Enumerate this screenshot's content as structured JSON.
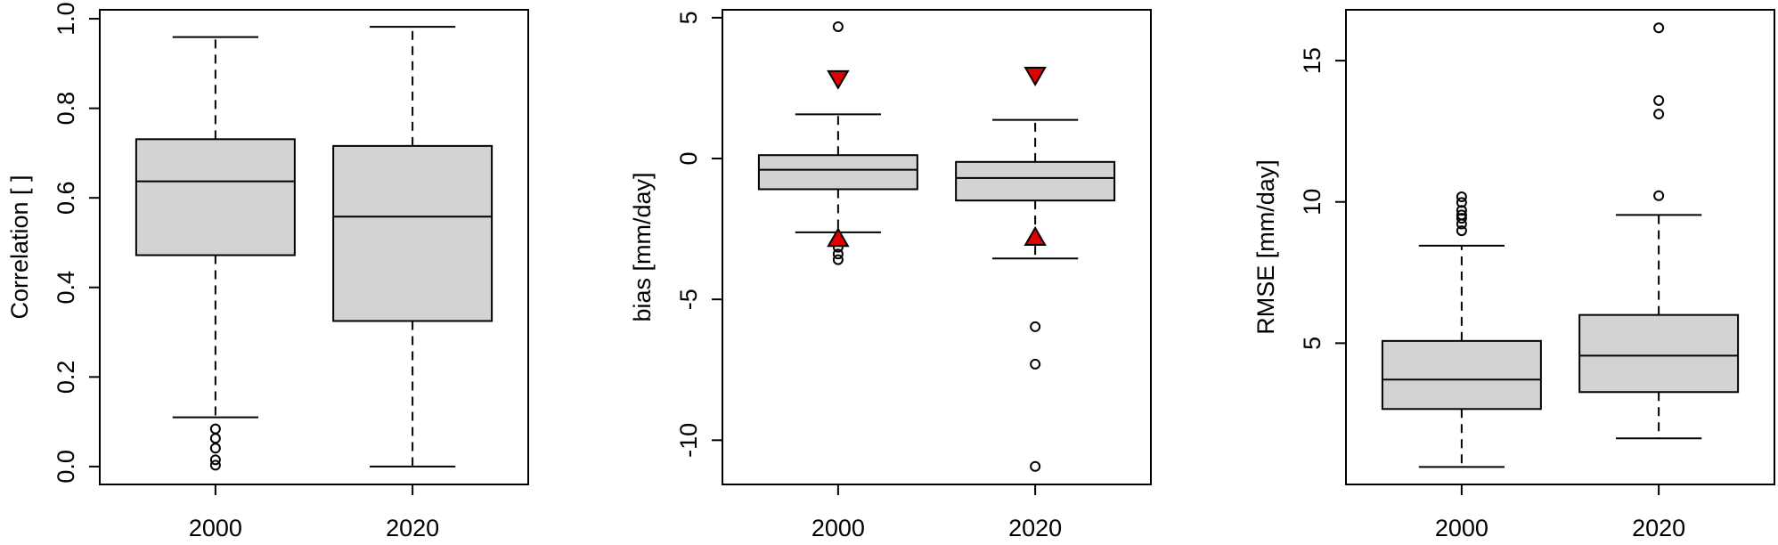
{
  "chart_data": [
    {
      "type": "boxplot",
      "y_label": "Correlation [ ]",
      "categories": [
        "2000",
        "2020"
      ],
      "boxes": [
        {
          "whislo": 0.11,
          "q1": 0.472,
          "med": 0.637,
          "q3": 0.731,
          "whishi": 0.959,
          "fliers": [
            0.084,
            0.063,
            0.041,
            0.015,
            0.003
          ]
        },
        {
          "whislo": 0.0,
          "q1": 0.325,
          "med": 0.558,
          "q3": 0.716,
          "whishi": 0.982,
          "fliers": []
        }
      ],
      "box_color": "#d3d3d3",
      "ylim": [
        -0.04,
        1.02
      ],
      "yticks": [
        {
          "value": 0,
          "label": "0.0"
        },
        0.2,
        0.4,
        0.6,
        0.8,
        {
          "value": 1,
          "label": "1.0"
        }
      ]
    },
    {
      "type": "boxplot",
      "y_label": "bias [mm/day]",
      "categories": [
        "2000",
        "2020"
      ],
      "boxes": [
        {
          "whislo": -2.62,
          "q1": -1.09,
          "med": -0.4,
          "q3": 0.12,
          "whishi": 1.57,
          "fliers": [
            4.68,
            -3.15,
            -3.39,
            -3.59
          ]
        },
        {
          "whislo": -3.55,
          "q1": -1.49,
          "med": -0.69,
          "q3": -0.12,
          "whishi": 1.37,
          "fliers": [
            -5.97,
            -7.3,
            -10.93
          ]
        }
      ],
      "box_color": "#d3d3d3",
      "markers_up": [
        -2.82,
        -2.78
      ],
      "markers_down": [
        2.82,
        2.94
      ],
      "marker_color": "#e00000",
      "ylim": [
        -11.57,
        5.28
      ],
      "yticks": [
        -10,
        -5,
        0,
        5
      ]
    },
    {
      "type": "boxplot",
      "y_label": "RMSE [mm/day]",
      "categories": [
        "2000",
        "2020"
      ],
      "boxes": [
        {
          "whislo": 0.62,
          "q1": 2.67,
          "med": 3.71,
          "q3": 5.08,
          "whishi": 8.45,
          "fliers": [
            8.98,
            9.22,
            9.42,
            9.54,
            9.7,
            9.98,
            10.18
          ]
        },
        {
          "whislo": 1.63,
          "q1": 3.27,
          "med": 4.56,
          "q3": 6.0,
          "whishi": 9.54,
          "fliers": [
            10.22,
            13.11,
            13.59,
            16.16
          ]
        }
      ],
      "box_color": "#d3d3d3",
      "ylim": [
        0,
        16.8
      ],
      "yticks": [
        5,
        10,
        15
      ]
    }
  ]
}
